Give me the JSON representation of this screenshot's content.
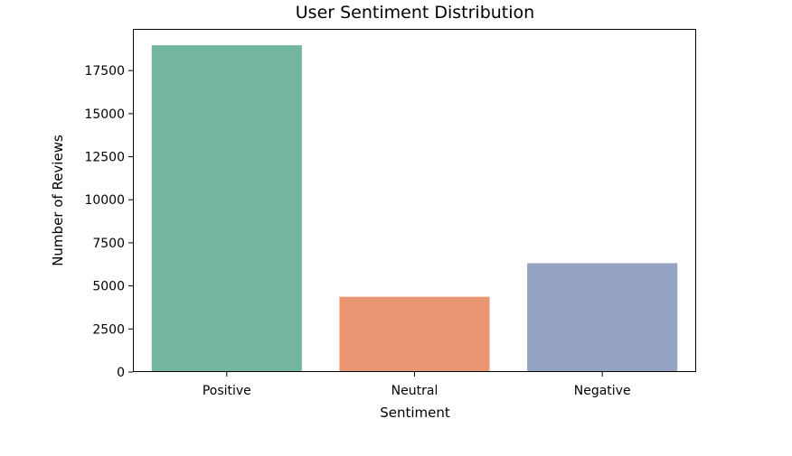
{
  "chart_data": {
    "type": "bar",
    "title": "User Sentiment Distribution",
    "xlabel": "Sentiment",
    "ylabel": "Number of Reviews",
    "categories": [
      "Positive",
      "Neutral",
      "Negative"
    ],
    "values": [
      18970,
      4370,
      6320
    ],
    "colors": [
      "#73b6a0",
      "#ea9673",
      "#95a3c4"
    ],
    "ylim": [
      0,
      19920
    ],
    "yticks": [
      0,
      2500,
      5000,
      7500,
      10000,
      12500,
      15000,
      17500
    ],
    "grid": false,
    "legend": "none"
  }
}
